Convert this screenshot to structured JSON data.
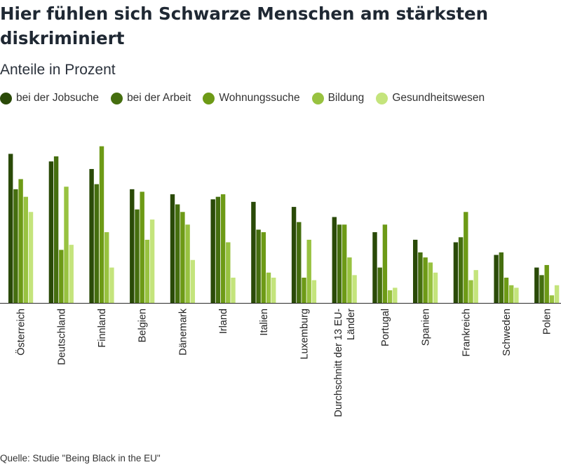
{
  "title": "Hier fühlen sich Schwarze Menschen am stärksten diskriminiert",
  "subtitle": "Anteile in Prozent",
  "source": "Quelle: Studie \"Being Black in the EU\"",
  "colors": [
    "#2a4a08",
    "#456e0f",
    "#6d9a16",
    "#98c240",
    "#c4e47c"
  ],
  "chart_data": {
    "type": "bar",
    "title": "Hier fühlen sich Schwarze Menschen am stärksten diskriminiert",
    "subtitle": "Anteile in Prozent",
    "xlabel": "",
    "ylabel": "",
    "ylim": [
      0,
      63
    ],
    "grid": false,
    "legend_position": "top",
    "categories": [
      "Österreich",
      "Deutschland",
      "Finnland",
      "Belgien",
      "Dänemark",
      "Irland",
      "Italien",
      "Luxemburg",
      "Durchschnitt der 13 EU-Länder",
      "Portugal",
      "Spanien",
      "Frankreich",
      "Schweden",
      "Polen"
    ],
    "category_label_lines": [
      [
        "Österreich"
      ],
      [
        "Deutschland"
      ],
      [
        "Finnland"
      ],
      [
        "Belgien"
      ],
      [
        "Dänemark"
      ],
      [
        "Irland"
      ],
      [
        "Italien"
      ],
      [
        "Luxemburg"
      ],
      [
        "Durchschnitt der 13 EU-",
        "Länder"
      ],
      [
        "Portugal"
      ],
      [
        "Spanien"
      ],
      [
        "Frankreich"
      ],
      [
        "Schweden"
      ],
      [
        "Polen"
      ]
    ],
    "series": [
      {
        "name": "bei der Jobsuche",
        "values": [
          59,
          56,
          53,
          45,
          43,
          41,
          40,
          38,
          34,
          28,
          25,
          24,
          19,
          14
        ]
      },
      {
        "name": "bei der Arbeit",
        "values": [
          45,
          58,
          47,
          37,
          39,
          42,
          29,
          32,
          31,
          14,
          20,
          26,
          20,
          11
        ]
      },
      {
        "name": "Wohnungssuche",
        "values": [
          49,
          21,
          62,
          44,
          36,
          43,
          28,
          10,
          31,
          31,
          18,
          36,
          10,
          15
        ]
      },
      {
        "name": "Bildung",
        "values": [
          42,
          46,
          28,
          25,
          31,
          24,
          12,
          25,
          18,
          5,
          16,
          9,
          7,
          3
        ]
      },
      {
        "name": "Gesundheitswesen",
        "values": [
          36,
          23,
          14,
          33,
          17,
          10,
          10,
          9,
          11,
          6,
          12,
          13,
          6,
          7
        ]
      }
    ]
  }
}
